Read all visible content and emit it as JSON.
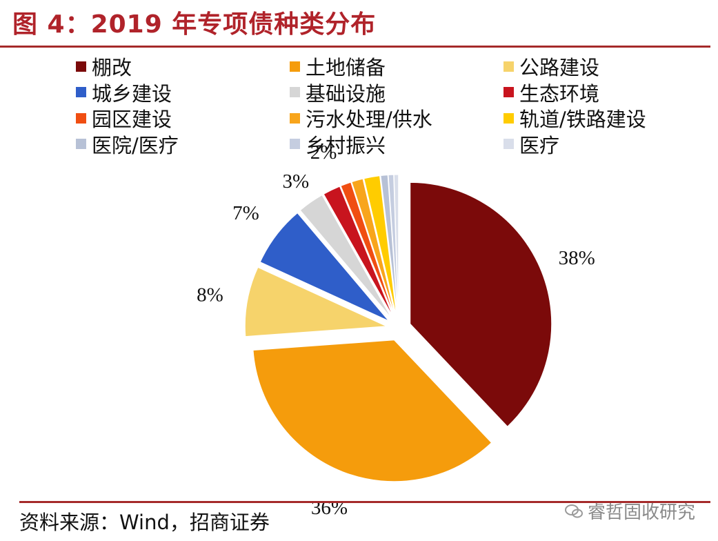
{
  "title": "图 4：2019 年专项债种类分布",
  "source": "资料来源：Wind，招商证券",
  "watermark": "睿哲固收研究",
  "chart_data": {
    "type": "pie",
    "title": "图 4：2019 年专项债种类分布",
    "legend_position": "top",
    "slices": [
      {
        "name": "棚改",
        "value": 38,
        "label": "38%",
        "color": "#7b0a0a",
        "exploded": true
      },
      {
        "name": "土地储备",
        "value": 36,
        "label": "36%",
        "color": "#f59c0c",
        "exploded": true
      },
      {
        "name": "公路建设",
        "value": 8,
        "label": "8%",
        "color": "#f6d36b",
        "exploded": true
      },
      {
        "name": "城乡建设",
        "value": 7,
        "label": "7%",
        "color": "#2f5ec9",
        "exploded": true
      },
      {
        "name": "基础设施",
        "value": 3,
        "label": "3%",
        "color": "#d6d6d6",
        "exploded": true
      },
      {
        "name": "生态环境",
        "value": 2,
        "label": "2%",
        "color": "#c8141e",
        "exploded": true
      },
      {
        "name": "园区建设",
        "value": 1.2,
        "label": "",
        "color": "#f04e12",
        "exploded": true
      },
      {
        "name": "污水处理/供水",
        "value": 1.3,
        "label": "",
        "color": "#f8a51c",
        "exploded": true
      },
      {
        "name": "轨道/铁路建设",
        "value": 1.8,
        "label": "",
        "color": "#ffcc00",
        "exploded": true
      },
      {
        "name": "医院/医疗",
        "value": 0.8,
        "label": "",
        "color": "#b7c1d6",
        "exploded": true
      },
      {
        "name": "乡村振兴",
        "value": 0.6,
        "label": "",
        "color": "#c5cde0",
        "exploded": true
      },
      {
        "name": "医疗",
        "value": 0.5,
        "label": "",
        "color": "#d9deea",
        "exploded": true
      }
    ]
  }
}
